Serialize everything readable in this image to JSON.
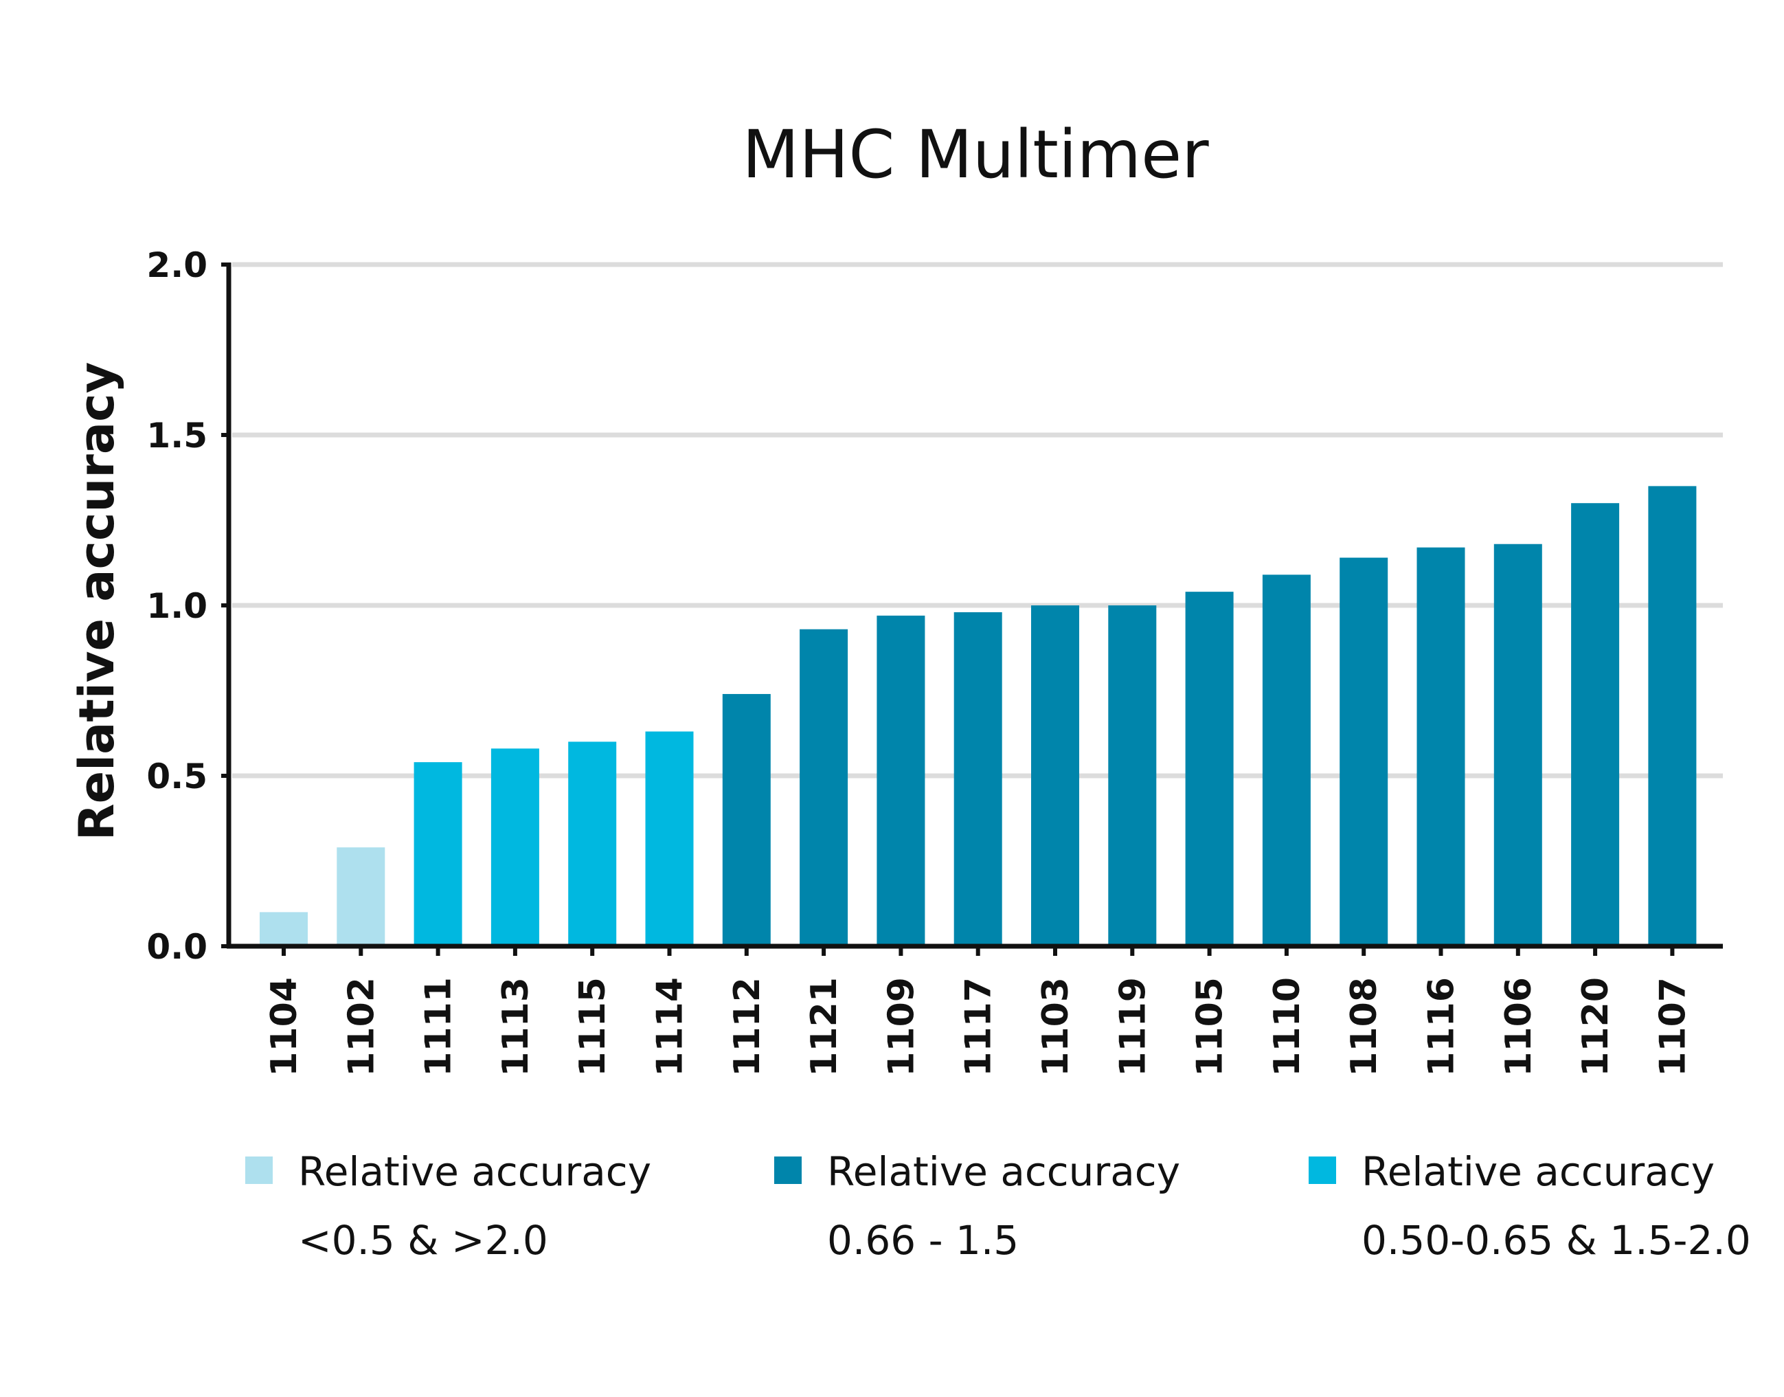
{
  "chart_data": {
    "type": "bar",
    "title": "MHC Multimer",
    "xlabel": "",
    "ylabel": "Relative accuracy",
    "ylim": [
      0,
      2.0
    ],
    "yticks": [
      "0.0",
      "0.5",
      "1.0",
      "1.5",
      "2.0"
    ],
    "grid": true,
    "legend_position": "bottom",
    "categories": [
      "1104",
      "1102",
      "1111",
      "1113",
      "1115",
      "1114",
      "1112",
      "1121",
      "1109",
      "1117",
      "1103",
      "1119",
      "1105",
      "1110",
      "1108",
      "1116",
      "1106",
      "1120",
      "1107"
    ],
    "values": [
      0.1,
      0.29,
      0.54,
      0.58,
      0.6,
      0.63,
      0.74,
      0.93,
      0.97,
      0.98,
      1.0,
      1.0,
      1.04,
      1.09,
      1.14,
      1.17,
      1.18,
      1.3,
      1.35
    ],
    "bar_groups": [
      "low",
      "low",
      "mid",
      "mid",
      "mid",
      "mid",
      "good",
      "good",
      "good",
      "good",
      "good",
      "good",
      "good",
      "good",
      "good",
      "good",
      "good",
      "good",
      "good"
    ],
    "legend": [
      {
        "group": "low",
        "line1": "Relative accuracy",
        "line2": "<0.5 & >2.0",
        "color": "#aee0ee"
      },
      {
        "group": "good",
        "line1": "Relative accuracy",
        "line2": "0.66 - 1.5",
        "color": "#0085ab"
      },
      {
        "group": "mid",
        "line1": "Relative accuracy",
        "line2": "0.50-0.65 & 1.5-2.0",
        "color": "#00b8e0"
      }
    ]
  }
}
